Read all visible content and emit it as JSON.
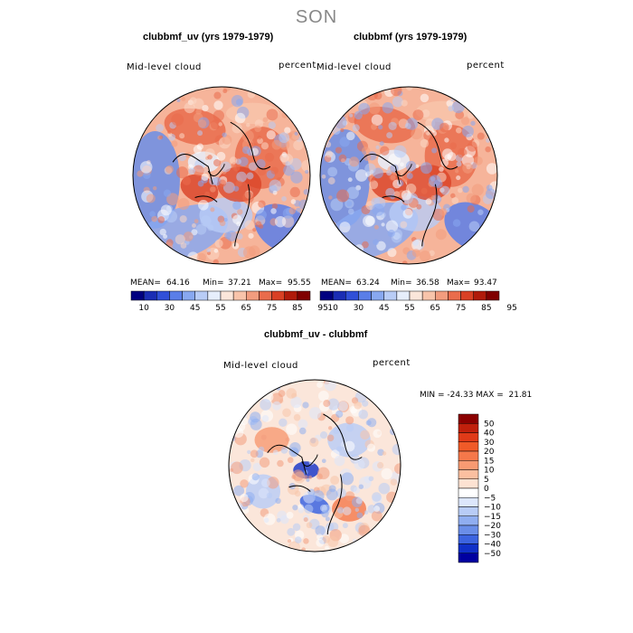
{
  "figure": {
    "season": "SON"
  },
  "panels": [
    {
      "title": "clubbmf_uv (yrs 1979-1979)",
      "left_label": "Mid-level cloud",
      "right_label": "percent",
      "stats": {
        "mean_label": "MEAN=",
        "mean": "64.16",
        "min_label": "Min=",
        "min": "37.21",
        "max_label": "Max=",
        "max": "95.55"
      },
      "colorbar": {
        "ticks": [
          "10",
          "30",
          "45",
          "55",
          "65",
          "75",
          "85",
          "95"
        ],
        "colors": [
          "#000080",
          "#1a2db4",
          "#3050d8",
          "#5a7ee8",
          "#88a8f0",
          "#b8ccf6",
          "#e6eefc",
          "#fbe6da",
          "#f8c4aa",
          "#f29c7e",
          "#e96c4c",
          "#d94024",
          "#b01a0a",
          "#800000"
        ]
      }
    },
    {
      "title": "clubbmf (yrs 1979-1979)",
      "left_label": "Mid-level cloud",
      "right_label": "percent",
      "stats": {
        "mean_label": "MEAN=",
        "mean": "63.24",
        "min_label": "Min=",
        "min": "36.58",
        "max_label": "Max=",
        "max": "93.47"
      },
      "colorbar": {
        "ticks": [
          "10",
          "30",
          "45",
          "55",
          "65",
          "75",
          "85",
          "95"
        ],
        "colors": [
          "#000080",
          "#1a2db4",
          "#3050d8",
          "#5a7ee8",
          "#88a8f0",
          "#b8ccf6",
          "#e6eefc",
          "#fbe6da",
          "#f8c4aa",
          "#f29c7e",
          "#e96c4c",
          "#d94024",
          "#b01a0a",
          "#800000"
        ]
      }
    },
    {
      "title": "clubbmf_uv - clubbmf",
      "left_label": "Mid-level cloud",
      "right_label": "percent",
      "stats": {
        "text": "MIN = -24.33 MAX =  21.81"
      },
      "colorbar": {
        "ticks": [
          "50",
          "40",
          "30",
          "20",
          "15",
          "10",
          "5",
          "0",
          "−5",
          "−10",
          "−15",
          "−20",
          "−30",
          "−40",
          "−50"
        ],
        "colors": [
          "#8b0000",
          "#c0200c",
          "#e03a18",
          "#f05a28",
          "#f5784a",
          "#f89a72",
          "#fbbfa0",
          "#fde2d2",
          "#ffffff",
          "#dce6fb",
          "#b8ccf6",
          "#90aef0",
          "#6a8ee8",
          "#3c64e0",
          "#1030c8",
          "#0000a0"
        ]
      }
    }
  ]
}
